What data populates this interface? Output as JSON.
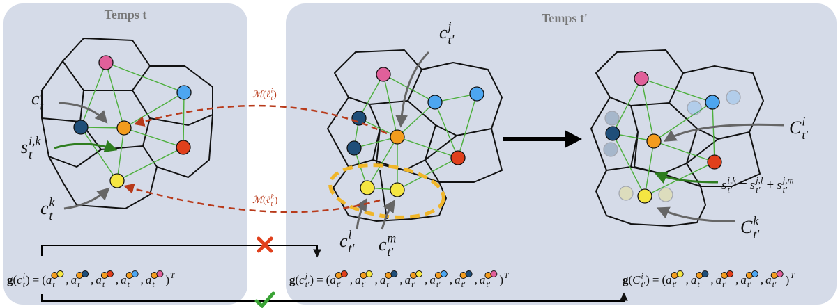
{
  "panels": [
    {
      "title": "Temps t"
    },
    {
      "title": "Temps t'"
    }
  ],
  "labels": {
    "c_t_i": {
      "base": "c",
      "sup": "i",
      "sub": "t"
    },
    "s_t_ik": {
      "base": "s",
      "sup": "i,k",
      "sub": "t"
    },
    "c_t_k": {
      "base": "c",
      "sup": "k",
      "sub": "t"
    },
    "c_tp_j": {
      "base": "c",
      "sup": "j",
      "sub": "t'"
    },
    "c_tp_l": {
      "base": "c",
      "sup": "l",
      "sub": "t'"
    },
    "c_tp_m": {
      "base": "c",
      "sup": "m",
      "sub": "t'"
    },
    "C_tp_i": {
      "base": "C",
      "sup": "i",
      "sub": "t'"
    },
    "C_tp_k": {
      "base": "C",
      "sup": "k",
      "sub": "t'"
    }
  },
  "equation": {
    "terms": [
      {
        "base": "s",
        "sup": "i,k",
        "sub": "t'"
      },
      {
        "base": "s",
        "sup": "j,l",
        "sub": "t'"
      },
      {
        "base": "s",
        "sup": "j,m",
        "sub": "t'"
      }
    ],
    "ops": [
      "=",
      "+"
    ]
  },
  "mappings": [
    {
      "fn": "ℳ",
      "open": "(",
      "arg": {
        "base": "ℓ",
        "sup": "i",
        "sub": "t"
      },
      "close": ")"
    },
    {
      "fn": "ℳ",
      "open": "(",
      "arg": {
        "base": "ℓ",
        "sup": "k",
        "sub": "t"
      },
      "close": ")"
    }
  ],
  "formulas": [
    {
      "fn": "g",
      "open": "(",
      "arg": {
        "base": "c",
        "sup": "i",
        "sub": "t"
      },
      "close": ")",
      "eq": "=",
      "lp": "(",
      "rp": ")",
      "sep": ",",
      "exp": "T",
      "entries": [
        {
          "base": "a",
          "sub": "t",
          "dots": [
            "#f39c1e",
            "#f5e642"
          ]
        },
        {
          "base": "a",
          "sub": "t",
          "dots": [
            "#f39c1e",
            "#1f4e79"
          ]
        },
        {
          "base": "a",
          "sub": "t",
          "dots": [
            "#f39c1e",
            "#e0401c"
          ]
        },
        {
          "base": "a",
          "sub": "t",
          "dots": [
            "#f39c1e",
            "#4da6f0"
          ]
        },
        {
          "base": "a",
          "sub": "t",
          "dots": [
            "#f39c1e",
            "#e0609a"
          ]
        }
      ]
    },
    {
      "fn": "g",
      "open": "(",
      "arg": {
        "base": "c",
        "sup": "j",
        "sub": "t'"
      },
      "close": ")",
      "eq": "=",
      "lp": "(",
      "rp": ")",
      "sep": ",",
      "exp": "T",
      "entries": [
        {
          "base": "a",
          "sub": "t'",
          "dots": [
            "#f39c1e",
            "#e0401c"
          ]
        },
        {
          "base": "a",
          "sub": "t'",
          "dots": [
            "#f39c1e",
            "#f5e642"
          ]
        },
        {
          "base": "a",
          "sub": "t'",
          "dots": [
            "#f39c1e",
            "#1f4e79"
          ]
        },
        {
          "base": "a",
          "sub": "t'",
          "dots": [
            "#f39c1e",
            "#f5e642"
          ]
        },
        {
          "base": "a",
          "sub": "t'",
          "dots": [
            "#f39c1e",
            "#4da6f0"
          ]
        },
        {
          "base": "a",
          "sub": "t'",
          "dots": [
            "#f39c1e",
            "#1f4e79"
          ]
        },
        {
          "base": "a",
          "sub": "t'",
          "dots": [
            "#f39c1e",
            "#e0609a"
          ]
        }
      ]
    },
    {
      "fn": "g",
      "open": "(",
      "arg": {
        "base": "C",
        "sup": "i",
        "sub": "t'"
      },
      "close": ")",
      "eq": "=",
      "lp": "(",
      "rp": ")",
      "sep": ",",
      "exp": "T",
      "entries": [
        {
          "base": "a",
          "sub": "t'",
          "dots": [
            "#f39c1e",
            "#f5e642"
          ]
        },
        {
          "base": "a",
          "sub": "t'",
          "dots": [
            "#f39c1e",
            "#1f4e79"
          ]
        },
        {
          "base": "a",
          "sub": "t'",
          "dots": [
            "#f39c1e",
            "#e0401c"
          ]
        },
        {
          "base": "a",
          "sub": "t'",
          "dots": [
            "#f39c1e",
            "#4da6f0"
          ]
        },
        {
          "base": "a",
          "sub": "t'",
          "dots": [
            "#f39c1e",
            "#e0609a"
          ]
        }
      ]
    }
  ]
}
